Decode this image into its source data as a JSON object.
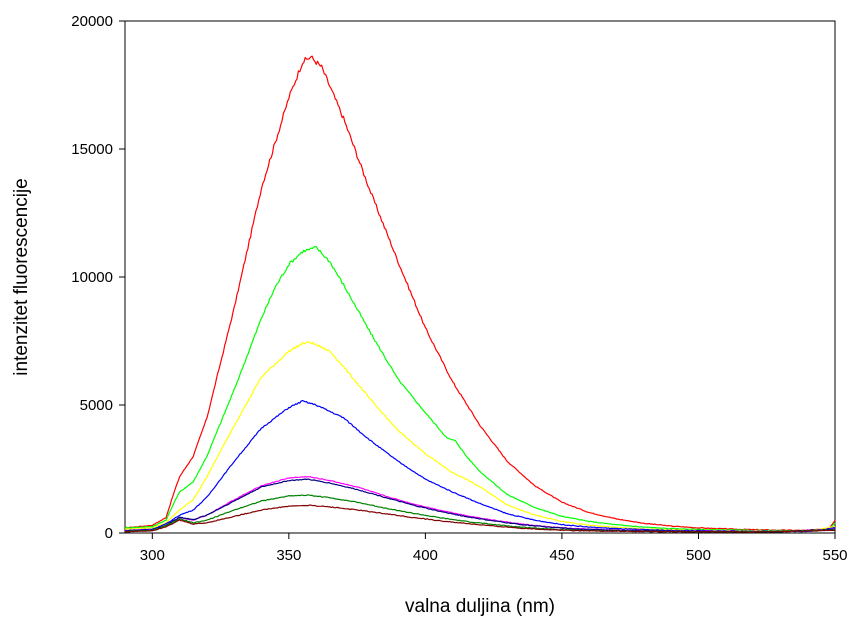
{
  "chart_data": {
    "type": "line",
    "title": "",
    "xlabel": "valna duljina (nm)",
    "ylabel": "intenzitet fluorescencije",
    "xlim": [
      290,
      550
    ],
    "ylim": [
      0,
      20000
    ],
    "x_ticks": [
      "300",
      "350",
      "400",
      "450",
      "500",
      "550"
    ],
    "y_ticks": [
      "0",
      "5000",
      "10000",
      "15000",
      "20000"
    ],
    "grid": false,
    "legend": "none",
    "series": [
      {
        "color": "#ff0000",
        "points": [
          [
            290,
            200
          ],
          [
            300,
            300
          ],
          [
            305,
            600
          ],
          [
            308,
            1600
          ],
          [
            310,
            2200
          ],
          [
            315,
            3000
          ],
          [
            320,
            4500
          ],
          [
            330,
            8800
          ],
          [
            340,
            13500
          ],
          [
            350,
            17000
          ],
          [
            355,
            18400
          ],
          [
            358,
            18600
          ],
          [
            362,
            18200
          ],
          [
            370,
            16200
          ],
          [
            380,
            13300
          ],
          [
            390,
            10600
          ],
          [
            400,
            8000
          ],
          [
            410,
            5900
          ],
          [
            420,
            4200
          ],
          [
            430,
            2800
          ],
          [
            440,
            1850
          ],
          [
            450,
            1200
          ],
          [
            460,
            800
          ],
          [
            470,
            550
          ],
          [
            480,
            380
          ],
          [
            490,
            270
          ],
          [
            500,
            200
          ],
          [
            510,
            160
          ],
          [
            520,
            130
          ],
          [
            530,
            110
          ],
          [
            540,
            100
          ],
          [
            548,
            200
          ],
          [
            550,
            500
          ]
        ]
      },
      {
        "color": "#00ff00",
        "points": [
          [
            290,
            200
          ],
          [
            300,
            250
          ],
          [
            305,
            500
          ],
          [
            308,
            1200
          ],
          [
            310,
            1600
          ],
          [
            315,
            2000
          ],
          [
            320,
            3000
          ],
          [
            330,
            5600
          ],
          [
            340,
            8400
          ],
          [
            345,
            9600
          ],
          [
            350,
            10500
          ],
          [
            355,
            11000
          ],
          [
            360,
            11150
          ],
          [
            365,
            10600
          ],
          [
            370,
            9700
          ],
          [
            380,
            7800
          ],
          [
            390,
            6000
          ],
          [
            400,
            4700
          ],
          [
            408,
            3700
          ],
          [
            411,
            3600
          ],
          [
            415,
            3000
          ],
          [
            420,
            2400
          ],
          [
            430,
            1500
          ],
          [
            440,
            1000
          ],
          [
            450,
            650
          ],
          [
            460,
            450
          ],
          [
            470,
            320
          ],
          [
            480,
            230
          ],
          [
            490,
            170
          ],
          [
            500,
            140
          ],
          [
            510,
            120
          ],
          [
            520,
            100
          ],
          [
            530,
            90
          ],
          [
            540,
            80
          ],
          [
            548,
            150
          ],
          [
            550,
            400
          ]
        ]
      },
      {
        "color": "#ffff00",
        "points": [
          [
            290,
            150
          ],
          [
            300,
            200
          ],
          [
            305,
            400
          ],
          [
            310,
            900
          ],
          [
            315,
            1300
          ],
          [
            320,
            2200
          ],
          [
            330,
            4200
          ],
          [
            340,
            6100
          ],
          [
            350,
            7100
          ],
          [
            355,
            7400
          ],
          [
            358,
            7450
          ],
          [
            365,
            7100
          ],
          [
            370,
            6500
          ],
          [
            380,
            5200
          ],
          [
            390,
            4000
          ],
          [
            400,
            3100
          ],
          [
            410,
            2350
          ],
          [
            415,
            2100
          ],
          [
            420,
            1800
          ],
          [
            430,
            1100
          ],
          [
            440,
            700
          ],
          [
            450,
            450
          ],
          [
            460,
            300
          ],
          [
            470,
            220
          ],
          [
            480,
            160
          ],
          [
            490,
            120
          ],
          [
            500,
            100
          ],
          [
            520,
            80
          ],
          [
            540,
            70
          ],
          [
            550,
            250
          ]
        ]
      },
      {
        "color": "#0000ff",
        "points": [
          [
            290,
            100
          ],
          [
            300,
            150
          ],
          [
            305,
            350
          ],
          [
            310,
            700
          ],
          [
            315,
            900
          ],
          [
            320,
            1400
          ],
          [
            330,
            2800
          ],
          [
            340,
            4100
          ],
          [
            350,
            4900
          ],
          [
            355,
            5150
          ],
          [
            360,
            5000
          ],
          [
            370,
            4500
          ],
          [
            380,
            3600
          ],
          [
            390,
            2800
          ],
          [
            400,
            2100
          ],
          [
            410,
            1600
          ],
          [
            420,
            1150
          ],
          [
            430,
            750
          ],
          [
            440,
            500
          ],
          [
            450,
            330
          ],
          [
            460,
            230
          ],
          [
            470,
            170
          ],
          [
            480,
            130
          ],
          [
            490,
            100
          ],
          [
            500,
            90
          ],
          [
            520,
            70
          ],
          [
            540,
            60
          ],
          [
            550,
            200
          ]
        ]
      },
      {
        "color": "#ff00ff",
        "points": [
          [
            290,
            80
          ],
          [
            300,
            120
          ],
          [
            305,
            300
          ],
          [
            310,
            600
          ],
          [
            315,
            500
          ],
          [
            320,
            700
          ],
          [
            330,
            1300
          ],
          [
            340,
            1850
          ],
          [
            350,
            2150
          ],
          [
            357,
            2200
          ],
          [
            365,
            2050
          ],
          [
            375,
            1800
          ],
          [
            385,
            1450
          ],
          [
            395,
            1150
          ],
          [
            405,
            900
          ],
          [
            415,
            680
          ],
          [
            425,
            500
          ],
          [
            435,
            350
          ],
          [
            445,
            240
          ],
          [
            455,
            170
          ],
          [
            465,
            130
          ],
          [
            475,
            100
          ],
          [
            490,
            80
          ],
          [
            510,
            60
          ],
          [
            530,
            50
          ],
          [
            550,
            150
          ]
        ]
      },
      {
        "color": "#000080",
        "points": [
          [
            290,
            80
          ],
          [
            300,
            120
          ],
          [
            305,
            300
          ],
          [
            310,
            620
          ],
          [
            315,
            520
          ],
          [
            320,
            700
          ],
          [
            330,
            1250
          ],
          [
            340,
            1800
          ],
          [
            350,
            2050
          ],
          [
            357,
            2100
          ],
          [
            365,
            1950
          ],
          [
            375,
            1700
          ],
          [
            385,
            1400
          ],
          [
            395,
            1100
          ],
          [
            405,
            850
          ],
          [
            415,
            640
          ],
          [
            425,
            470
          ],
          [
            435,
            330
          ],
          [
            445,
            230
          ],
          [
            455,
            160
          ],
          [
            465,
            120
          ],
          [
            475,
            95
          ],
          [
            490,
            75
          ],
          [
            510,
            55
          ],
          [
            530,
            45
          ],
          [
            550,
            150
          ]
        ]
      },
      {
        "color": "#008000",
        "points": [
          [
            290,
            60
          ],
          [
            300,
            100
          ],
          [
            305,
            280
          ],
          [
            310,
            550
          ],
          [
            315,
            400
          ],
          [
            320,
            500
          ],
          [
            330,
            900
          ],
          [
            340,
            1250
          ],
          [
            350,
            1450
          ],
          [
            357,
            1480
          ],
          [
            365,
            1380
          ],
          [
            375,
            1200
          ],
          [
            385,
            980
          ],
          [
            395,
            780
          ],
          [
            405,
            600
          ],
          [
            415,
            450
          ],
          [
            425,
            330
          ],
          [
            435,
            230
          ],
          [
            445,
            160
          ],
          [
            455,
            110
          ],
          [
            465,
            85
          ],
          [
            480,
            65
          ],
          [
            500,
            50
          ],
          [
            520,
            40
          ],
          [
            550,
            120
          ]
        ]
      },
      {
        "color": "#800000",
        "points": [
          [
            290,
            50
          ],
          [
            300,
            90
          ],
          [
            305,
            250
          ],
          [
            310,
            500
          ],
          [
            315,
            350
          ],
          [
            320,
            400
          ],
          [
            330,
            650
          ],
          [
            340,
            900
          ],
          [
            350,
            1050
          ],
          [
            358,
            1080
          ],
          [
            365,
            1020
          ],
          [
            375,
            900
          ],
          [
            385,
            760
          ],
          [
            395,
            610
          ],
          [
            405,
            480
          ],
          [
            415,
            370
          ],
          [
            425,
            270
          ],
          [
            435,
            190
          ],
          [
            445,
            130
          ],
          [
            455,
            95
          ],
          [
            465,
            75
          ],
          [
            480,
            55
          ],
          [
            500,
            45
          ],
          [
            520,
            35
          ],
          [
            550,
            100
          ]
        ]
      }
    ]
  }
}
